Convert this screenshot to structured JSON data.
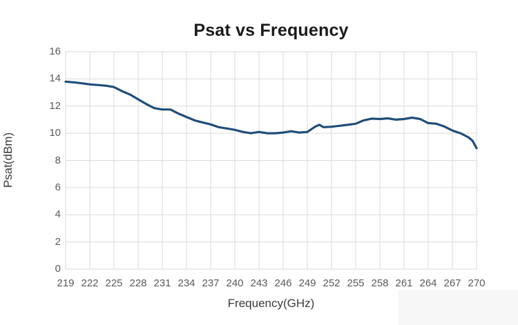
{
  "chart_data": {
    "type": "line",
    "title": "Psat vs Frequency",
    "xlabel": "Frequency(GHz)",
    "ylabel": "Psat(dBm)",
    "xlim": [
      219,
      270
    ],
    "ylim": [
      0,
      16
    ],
    "x_ticks": [
      219,
      222,
      225,
      228,
      231,
      234,
      237,
      240,
      243,
      246,
      249,
      252,
      255,
      258,
      261,
      264,
      267,
      270
    ],
    "y_ticks": [
      0,
      2,
      4,
      6,
      8,
      10,
      12,
      14,
      16
    ],
    "grid": true,
    "legend": "none",
    "colors": {
      "line": "#1f4e79",
      "grid": "#d9d9d9",
      "tick_text": "#595959",
      "title_text": "#1a1a1a",
      "axis_label_text": "#3a3a3a",
      "background": "#ffffff"
    },
    "series": [
      {
        "name": "Psat",
        "x": [
          219,
          220,
          221,
          222,
          223,
          224,
          225,
          226,
          227,
          228,
          229,
          230,
          231,
          232,
          233,
          234,
          235,
          236,
          237,
          238,
          239,
          240,
          241,
          242,
          243,
          244,
          245,
          246,
          247,
          248,
          249,
          250,
          250.5,
          251,
          252,
          253,
          254,
          255,
          256,
          257,
          258,
          259,
          260,
          261,
          262,
          263,
          264,
          265,
          266,
          267,
          268,
          269,
          269.5,
          270
        ],
        "y": [
          13.8,
          13.75,
          13.68,
          13.6,
          13.55,
          13.5,
          13.4,
          13.1,
          12.85,
          12.5,
          12.15,
          11.85,
          11.75,
          11.75,
          11.45,
          11.2,
          10.95,
          10.8,
          10.65,
          10.45,
          10.35,
          10.25,
          10.1,
          10.0,
          10.1,
          10.0,
          10.0,
          10.05,
          10.15,
          10.05,
          10.1,
          10.5,
          10.62,
          10.45,
          10.48,
          10.55,
          10.62,
          10.7,
          10.95,
          11.08,
          11.05,
          11.1,
          11.0,
          11.05,
          11.15,
          11.05,
          10.75,
          10.7,
          10.5,
          10.2,
          10.0,
          9.7,
          9.45,
          8.9
        ]
      }
    ]
  }
}
